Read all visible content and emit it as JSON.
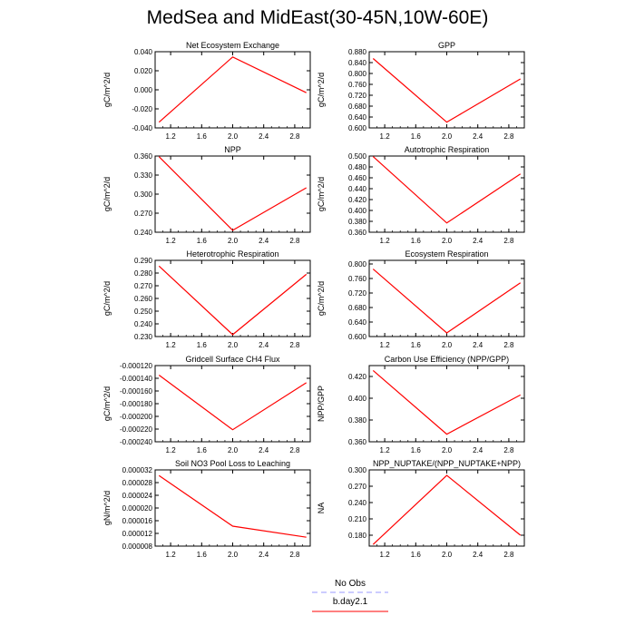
{
  "title": "MedSea and MidEast(30-45N,10W-60E)",
  "colors": {
    "model": "#ff0000",
    "obs": "#9999ff"
  },
  "legend": {
    "entries": [
      {
        "label": "No Obs",
        "style": "dashed"
      },
      {
        "label": "b.day2.1",
        "style": "solid"
      }
    ]
  },
  "chart_data": [
    {
      "type": "line",
      "title": "Net Ecosystem Exchange",
      "ylabel": "gC/m^2/d",
      "xlim": [
        1,
        3
      ],
      "ylim": [
        -0.04,
        0.04
      ],
      "xticks": [
        "1.2",
        "1.6",
        "2.0",
        "2.4",
        "2.8"
      ],
      "yticks": [
        "-0.040",
        "-0.020",
        "0.000",
        "0.020",
        "0.040"
      ],
      "yticks_v": [
        -0.04,
        -0.02,
        0,
        0.02,
        0.04
      ],
      "series": [
        {
          "name": "b.day2.1",
          "x": [
            1.05,
            2.0,
            2.95
          ],
          "y": [
            -0.034,
            0.0345,
            -0.003
          ]
        }
      ]
    },
    {
      "type": "line",
      "title": "GPP",
      "ylabel": "gC/m^2/d",
      "xlim": [
        1,
        3
      ],
      "ylim": [
        0.6,
        0.88
      ],
      "xticks": [
        "1.2",
        "1.6",
        "2.0",
        "2.4",
        "2.8"
      ],
      "yticks": [
        "0.600",
        "0.640",
        "0.680",
        "0.720",
        "0.760",
        "0.800",
        "0.840",
        "0.880"
      ],
      "yticks_v": [
        0.6,
        0.64,
        0.68,
        0.72,
        0.76,
        0.8,
        0.84,
        0.88
      ],
      "series": [
        {
          "name": "b.day2.1",
          "x": [
            1.05,
            2.0,
            2.95
          ],
          "y": [
            0.855,
            0.621,
            0.78
          ]
        }
      ]
    },
    {
      "type": "line",
      "title": "NPP",
      "ylabel": "gC/m^2/d",
      "xlim": [
        1,
        3
      ],
      "ylim": [
        0.24,
        0.36
      ],
      "xticks": [
        "1.2",
        "1.6",
        "2.0",
        "2.4",
        "2.8"
      ],
      "yticks": [
        "0.240",
        "0.270",
        "0.300",
        "0.330",
        "0.360"
      ],
      "yticks_v": [
        0.24,
        0.27,
        0.3,
        0.33,
        0.36
      ],
      "series": [
        {
          "name": "b.day2.1",
          "x": [
            1.05,
            2.0,
            2.95
          ],
          "y": [
            0.359,
            0.243,
            0.31
          ]
        }
      ]
    },
    {
      "type": "line",
      "title": "Autotrophic Respiration",
      "ylabel": "gC/m^2/d",
      "xlim": [
        1,
        3
      ],
      "ylim": [
        0.36,
        0.5
      ],
      "xticks": [
        "1.2",
        "1.6",
        "2.0",
        "2.4",
        "2.8"
      ],
      "yticks": [
        "0.360",
        "0.380",
        "0.400",
        "0.420",
        "0.440",
        "0.460",
        "0.480",
        "0.500"
      ],
      "yticks_v": [
        0.36,
        0.38,
        0.4,
        0.42,
        0.44,
        0.46,
        0.48,
        0.5
      ],
      "series": [
        {
          "name": "b.day2.1",
          "x": [
            1.05,
            2.0,
            2.95
          ],
          "y": [
            0.499,
            0.377,
            0.467
          ]
        }
      ]
    },
    {
      "type": "line",
      "title": "Heterotrophic Respiration",
      "ylabel": "gC/m^2/d",
      "xlim": [
        1,
        3
      ],
      "ylim": [
        0.23,
        0.29
      ],
      "xticks": [
        "1.2",
        "1.6",
        "2.0",
        "2.4",
        "2.8"
      ],
      "yticks": [
        "0.230",
        "0.240",
        "0.250",
        "0.260",
        "0.270",
        "0.280",
        "0.290"
      ],
      "yticks_v": [
        0.23,
        0.24,
        0.25,
        0.26,
        0.27,
        0.28,
        0.29
      ],
      "series": [
        {
          "name": "b.day2.1",
          "x": [
            1.05,
            2.0,
            2.95
          ],
          "y": [
            0.2855,
            0.2315,
            0.279
          ]
        }
      ]
    },
    {
      "type": "line",
      "title": "Ecosystem Respiration",
      "ylabel": "gC/m^2/d",
      "xlim": [
        1,
        3
      ],
      "ylim": [
        0.6,
        0.81
      ],
      "xticks": [
        "1.2",
        "1.6",
        "2.0",
        "2.4",
        "2.8"
      ],
      "yticks": [
        "0.600",
        "0.640",
        "0.680",
        "0.720",
        "0.760",
        "0.800"
      ],
      "yticks_v": [
        0.6,
        0.64,
        0.68,
        0.72,
        0.76,
        0.8
      ],
      "series": [
        {
          "name": "b.day2.1",
          "x": [
            1.05,
            2.0,
            2.95
          ],
          "y": [
            0.786,
            0.61,
            0.748
          ]
        }
      ]
    },
    {
      "type": "line",
      "title": "Gridcell Surface CH4 Flux",
      "ylabel": "gC/m^2/d",
      "xlim": [
        1,
        3
      ],
      "ylim": [
        -0.00024,
        -0.00012
      ],
      "xticks": [
        "1.2",
        "1.6",
        "2.0",
        "2.4",
        "2.8"
      ],
      "yticks": [
        "-0.000240",
        "-0.000220",
        "-0.000200",
        "-0.000180",
        "-0.000160",
        "-0.000140",
        "-0.000120"
      ],
      "yticks_v": [
        -0.00024,
        -0.00022,
        -0.0002,
        -0.00018,
        -0.00016,
        -0.00014,
        -0.00012
      ],
      "series": [
        {
          "name": "b.day2.1",
          "x": [
            1.05,
            2.0,
            2.95
          ],
          "y": [
            -0.000135,
            -0.000221,
            -0.000147
          ]
        }
      ]
    },
    {
      "type": "line",
      "title": "Carbon Use Efficiency (NPP/GPP)",
      "ylabel": "NPP/GPP",
      "xlim": [
        1,
        3
      ],
      "ylim": [
        0.36,
        0.43
      ],
      "xticks": [
        "1.2",
        "1.6",
        "2.0",
        "2.4",
        "2.8"
      ],
      "yticks": [
        "0.360",
        "0.380",
        "0.400",
        "0.420"
      ],
      "yticks_v": [
        0.36,
        0.38,
        0.4,
        0.42
      ],
      "series": [
        {
          "name": "b.day2.1",
          "x": [
            1.05,
            2.0,
            2.95
          ],
          "y": [
            0.4255,
            0.367,
            0.403
          ]
        }
      ]
    },
    {
      "type": "line",
      "title": "Soil NO3 Pool Loss to Leaching",
      "ylabel": "gN/m^2/d",
      "xlim": [
        1,
        3
      ],
      "ylim": [
        8e-06,
        3.2e-05
      ],
      "xticks": [
        "1.2",
        "1.6",
        "2.0",
        "2.4",
        "2.8"
      ],
      "yticks": [
        "0.000008",
        "0.000012",
        "0.000016",
        "0.000020",
        "0.000024",
        "0.000028",
        "0.000032"
      ],
      "yticks_v": [
        8e-06,
        1.2e-05,
        1.6e-05,
        2e-05,
        2.4e-05,
        2.8e-05,
        3.2e-05
      ],
      "series": [
        {
          "name": "b.day2.1",
          "x": [
            1.05,
            2.0,
            2.95
          ],
          "y": [
            3.02e-05,
            1.43e-05,
            1.08e-05
          ]
        }
      ]
    },
    {
      "type": "line",
      "title": "NPP_NUPTAKE/(NPP_NUPTAKE+NPP)",
      "ylabel": "NA",
      "xlim": [
        1,
        3
      ],
      "ylim": [
        0.16,
        0.3
      ],
      "xticks": [
        "1.2",
        "1.6",
        "2.0",
        "2.4",
        "2.8"
      ],
      "yticks": [
        "0.180",
        "0.210",
        "0.240",
        "0.270",
        "0.300"
      ],
      "yticks_v": [
        0.18,
        0.21,
        0.24,
        0.27,
        0.3
      ],
      "series": [
        {
          "name": "b.day2.1",
          "x": [
            1.05,
            2.0,
            2.95
          ],
          "y": [
            0.163,
            0.29,
            0.18
          ]
        }
      ]
    }
  ]
}
